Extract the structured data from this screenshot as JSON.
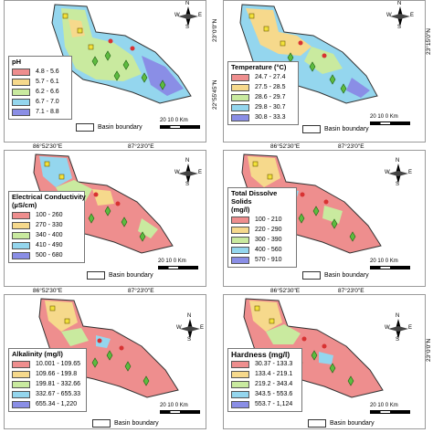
{
  "colors": {
    "class1": "#ee8e8e",
    "class2": "#f6d98c",
    "class3": "#c9ea9f",
    "class4": "#94d6ee",
    "class5": "#8a8ee6"
  },
  "common": {
    "basin_boundary": "Basin boundary",
    "scale_labels": [
      "20",
      "10",
      "0",
      "Km"
    ],
    "compass": {
      "n": "N",
      "s": "S",
      "e": "E",
      "w": "W"
    },
    "lat_labels": [
      "23°0'0\"N",
      "23°15'0\"N",
      "22°55'45\"N",
      "22°55'45\"N"
    ],
    "lon_labels": [
      "86°52'30\"E",
      "87°23'0\"E"
    ]
  },
  "panels": [
    {
      "title": "pH",
      "classes": [
        "4.8 - 5.6",
        "5.7 - 6.1",
        "6.2 - 6.6",
        "6.7 - 7.0",
        "7.1 - 8.8"
      ]
    },
    {
      "title": "Temperature (°C)",
      "classes": [
        "24.7 - 27.4",
        "27.5 - 28.5",
        "28.6 - 29.7",
        "29.8 - 30.7",
        "30.8 - 33.3"
      ]
    },
    {
      "title": "Electrical Conductivity",
      "title2": "(µS/cm)",
      "classes": [
        "100 - 260",
        "270 - 330",
        "340 - 400",
        "410 - 490",
        "500 - 680"
      ]
    },
    {
      "title": "Total Dissolve",
      "title2": "Solids",
      "title3": "(mg/l)",
      "classes": [
        "100 - 210",
        "220 - 290",
        "300 - 390",
        "400 - 560",
        "570 - 910"
      ]
    },
    {
      "title": "Alkalinity (mg/l)",
      "classes": [
        "10.001 - 109.65",
        "109.66 - 199.8",
        "199.81 - 332.66",
        "332.67 - 655.33",
        "655.34 - 1,220"
      ]
    },
    {
      "title": "Hardness (mg/l)",
      "classes": [
        "30.37 - 133.3",
        "133.4 - 219.1",
        "219.2 - 343.4",
        "343.5 - 553.6",
        "553.7 - 1,124"
      ]
    }
  ],
  "map_fill": {
    "pH": [
      "class3",
      "class4",
      "class5",
      "class2"
    ],
    "Temperature": [
      "class4",
      "class2",
      "class3",
      "class5"
    ],
    "Electrical Conductivity": [
      "class1",
      "class3",
      "class4",
      "class2"
    ],
    "Total Dissolve Solids": [
      "class1",
      "class2",
      "class4",
      "class3"
    ],
    "Alkalinity": [
      "class1",
      "class2",
      "class4",
      "class3"
    ],
    "Hardness": [
      "class1",
      "class2",
      "class3",
      "class4"
    ]
  }
}
